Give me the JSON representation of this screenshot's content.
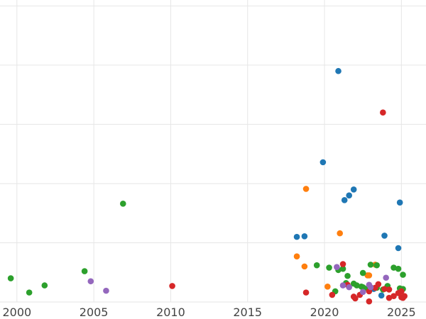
{
  "chart_data": {
    "type": "scatter",
    "title": "",
    "xlabel": "",
    "ylabel": "",
    "xlim": [
      1998.9,
      2026.6
    ],
    "ylim": [
      0,
      255
    ],
    "x_ticks": [
      2000,
      2005,
      2010,
      2015,
      2020,
      2025
    ],
    "x_tick_labels": [
      "2000",
      "2005",
      "2010",
      "2015",
      "2020",
      "2025"
    ],
    "y_gridlines": [
      0,
      50,
      100,
      150,
      200,
      250
    ],
    "y_tick_labels_visible": false,
    "grid": true,
    "legend": "none",
    "series": [
      {
        "color": "#1f77b4",
        "points": [
          [
            2020.9,
            195.0
          ],
          [
            2019.9,
            118.0
          ],
          [
            2021.9,
            95.0
          ],
          [
            2021.6,
            90.0
          ],
          [
            2021.3,
            86.0
          ],
          [
            2024.9,
            84.0
          ],
          [
            2018.2,
            55.0
          ],
          [
            2018.7,
            55.5
          ],
          [
            2023.9,
            56.0
          ],
          [
            2024.8,
            45.5
          ],
          [
            2023.7,
            5.5
          ],
          [
            2023.2,
            11.0
          ]
        ]
      },
      {
        "color": "#ff7f0e",
        "points": [
          [
            2018.8,
            95.5
          ],
          [
            2021.0,
            58.0
          ],
          [
            2018.2,
            38.5
          ],
          [
            2018.7,
            30.0
          ],
          [
            2023.3,
            31.5
          ],
          [
            2022.8,
            22.5
          ],
          [
            2020.2,
            13.0
          ],
          [
            2022.9,
            22.5
          ]
        ]
      },
      {
        "color": "#2ca02c",
        "points": [
          [
            1999.6,
            20.0
          ],
          [
            2000.8,
            8.0
          ],
          [
            2001.8,
            14.0
          ],
          [
            2004.4,
            26.0
          ],
          [
            2006.9,
            83.0
          ],
          [
            2019.5,
            31.0
          ],
          [
            2020.3,
            29.0
          ],
          [
            2020.9,
            27.0
          ],
          [
            2021.2,
            28.0
          ],
          [
            2021.5,
            22.0
          ],
          [
            2022.5,
            24.5
          ],
          [
            2022.5,
            12.5
          ],
          [
            2023.0,
            31.5
          ],
          [
            2023.4,
            31.0
          ],
          [
            2024.5,
            29.0
          ],
          [
            2024.8,
            28.0
          ],
          [
            2025.1,
            23.0
          ],
          [
            2020.7,
            9.0
          ],
          [
            2021.4,
            16.0
          ],
          [
            2021.9,
            15.5
          ],
          [
            2022.1,
            14.0
          ],
          [
            2022.4,
            13.0
          ],
          [
            2022.8,
            11.5
          ],
          [
            2023.4,
            12.0
          ],
          [
            2023.8,
            10.5
          ],
          [
            2024.1,
            13.5
          ],
          [
            2024.9,
            11.5
          ],
          [
            2025.1,
            11.0
          ]
        ]
      },
      {
        "color": "#d62728",
        "points": [
          [
            2023.8,
            160.0
          ],
          [
            2010.1,
            13.5
          ],
          [
            2018.8,
            8.0
          ],
          [
            2021.2,
            32.0
          ],
          [
            2021.5,
            14.5
          ],
          [
            2021.9,
            4.5
          ],
          [
            2022.0,
            3.0
          ],
          [
            2022.3,
            6.0
          ],
          [
            2022.9,
            0.5
          ],
          [
            2022.9,
            9.0
          ],
          [
            2023.3,
            12.0
          ],
          [
            2023.5,
            15.0
          ],
          [
            2023.9,
            11.0
          ],
          [
            2024.2,
            10.5
          ],
          [
            2024.2,
            3.5
          ],
          [
            2024.5,
            5.0
          ],
          [
            2024.8,
            7.5
          ],
          [
            2025.0,
            9.0
          ],
          [
            2025.0,
            4.0
          ],
          [
            2025.1,
            3.5
          ],
          [
            2020.5,
            6.0
          ],
          [
            2025.2,
            5.0
          ]
        ]
      },
      {
        "color": "#9467bd",
        "points": [
          [
            2004.8,
            17.5
          ],
          [
            2005.8,
            9.5
          ],
          [
            2020.8,
            29.5
          ],
          [
            2021.2,
            14.0
          ],
          [
            2021.6,
            12.5
          ],
          [
            2022.5,
            8.5
          ],
          [
            2022.9,
            14.5
          ],
          [
            2024.0,
            20.5
          ],
          [
            2023.0,
            12.5
          ]
        ]
      }
    ]
  }
}
